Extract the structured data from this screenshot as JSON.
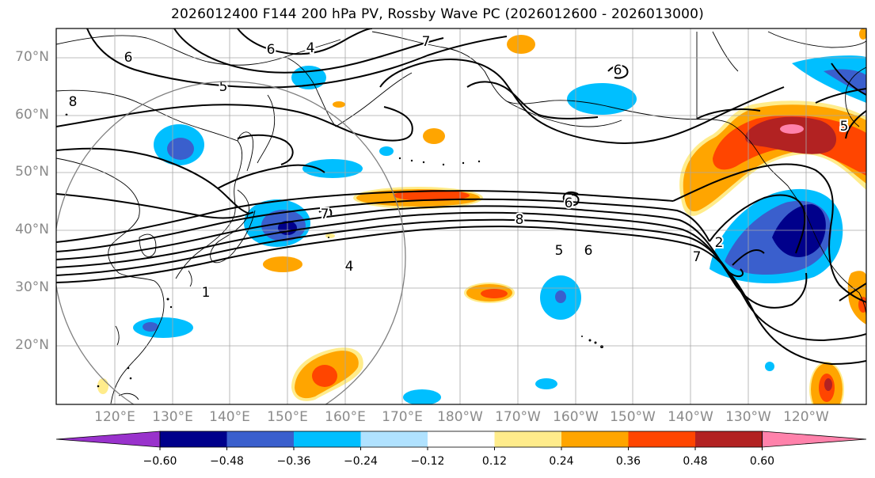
{
  "title": "2026012400 F144 200 hPa PV, Rossby Wave PC (2026012600 - 2026013000)",
  "latitudes": [
    "70°N",
    "60°N",
    "50°N",
    "40°N",
    "30°N",
    "20°N"
  ],
  "longitudes": [
    "120°E",
    "130°E",
    "140°E",
    "150°E",
    "160°E",
    "170°E",
    "180°W",
    "170°W",
    "160°W",
    "150°W",
    "140°W",
    "130°W",
    "120°W"
  ],
  "colorbar": {
    "ticks": [
      "−0.60",
      "−0.48",
      "−0.36",
      "−0.24",
      "−0.12",
      "0.12",
      "0.24",
      "0.36",
      "0.48",
      "0.60"
    ],
    "colors": [
      "#9932cc",
      "#00008b",
      "#3a5fcd",
      "#00bfff",
      "#b0e2ff",
      "#ffffff",
      "#ffec8b",
      "#ffa500",
      "#ff4500",
      "#b22222",
      "#ff82ab"
    ]
  },
  "contour_labels": [
    "7",
    "4",
    "5",
    "6",
    "6",
    "8",
    "5",
    "6",
    "4",
    "1",
    "7",
    "2",
    "7",
    "6",
    "5",
    "6",
    "8"
  ]
}
